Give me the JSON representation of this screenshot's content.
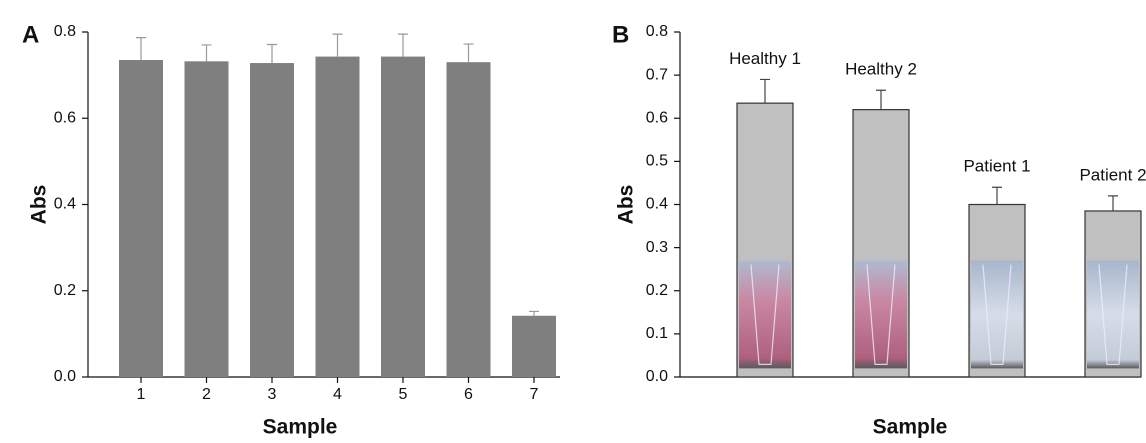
{
  "chart_data": [
    {
      "type": "bar",
      "panel_label": "A",
      "y_label": "Abs",
      "x_label": "Sample",
      "categories": [
        "1",
        "2",
        "3",
        "4",
        "5",
        "6",
        "7"
      ],
      "values": [
        0.735,
        0.732,
        0.728,
        0.743,
        0.743,
        0.73,
        0.142
      ],
      "errors": [
        0.052,
        0.038,
        0.043,
        0.052,
        0.052,
        0.042,
        0.01
      ],
      "color": "#7f7f7f",
      "ylim": [
        0,
        0.8
      ],
      "yticks": [
        {
          "value": 0,
          "label": "0.0"
        },
        0.2,
        0.4,
        0.6,
        0.8
      ]
    },
    {
      "type": "bar",
      "panel_label": "B",
      "y_label": "Abs",
      "x_label": "Sample",
      "categories": [
        "Healthy 1",
        "Healthy 2",
        "Patient 1",
        "Patient 2"
      ],
      "values": [
        0.635,
        0.62,
        0.4,
        0.385
      ],
      "errors": [
        0.055,
        0.045,
        0.04,
        0.035
      ],
      "color": "#c0c0c0",
      "ylim": [
        0,
        0.8
      ],
      "yticks": [
        {
          "value": 0,
          "label": "0.0"
        },
        0.1,
        0.2,
        0.3,
        0.4,
        0.5,
        0.6,
        0.7,
        0.8
      ]
    }
  ]
}
